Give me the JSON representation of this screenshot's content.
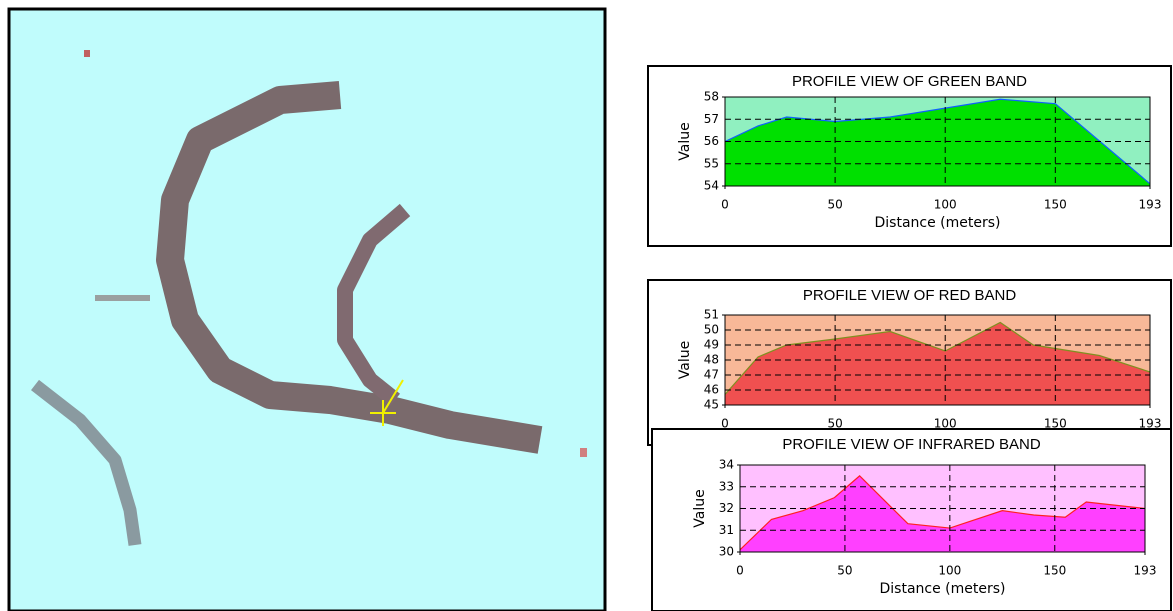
{
  "chart_data": [
    {
      "type": "area",
      "title": "PROFILE VIEW OF GREEN BAND",
      "xlabel": "Distance (meters)",
      "ylabel": "Value",
      "x": [
        0,
        15,
        28,
        50,
        75,
        100,
        125,
        150,
        193
      ],
      "values": [
        56,
        56.7,
        57.1,
        56.9,
        57.1,
        57.5,
        57.9,
        57.7,
        54.1
      ],
      "xlim": [
        0,
        193
      ],
      "xticks": [
        0,
        50,
        100,
        150,
        193
      ],
      "ylim": [
        54,
        58
      ],
      "yticks": [
        54,
        55,
        56,
        57,
        58
      ],
      "color": "#00e000",
      "line_color": "#1060ff",
      "background": "#90f0c0",
      "grid": true
    },
    {
      "type": "area",
      "title": "PROFILE VIEW OF RED BAND",
      "ylabel": "Value",
      "x": [
        0,
        15,
        28,
        50,
        75,
        100,
        125,
        140,
        170,
        193
      ],
      "values": [
        45.7,
        48.2,
        49,
        49.4,
        49.9,
        48.6,
        50.5,
        49,
        48.3,
        47.2
      ],
      "xlim": [
        0,
        193
      ],
      "xticks": [
        0,
        50,
        100,
        150,
        193
      ],
      "ylim": [
        45,
        51
      ],
      "yticks": [
        45,
        46,
        47,
        48,
        49,
        50,
        51
      ],
      "color": "#f05050",
      "line_color": "#809020",
      "background": "#f8b898",
      "grid": true
    },
    {
      "type": "area",
      "title": "PROFILE VIEW OF INFRARED BAND",
      "xlabel": "Distance (meters)",
      "ylabel": "Value",
      "x": [
        0,
        15,
        30,
        45,
        57,
        80,
        100,
        125,
        140,
        155,
        165,
        193
      ],
      "values": [
        30.1,
        31.5,
        31.9,
        32.5,
        33.5,
        31.3,
        31.1,
        31.9,
        31.7,
        31.6,
        32.3,
        32
      ],
      "xlim": [
        0,
        193
      ],
      "xticks": [
        0,
        50,
        100,
        150,
        193
      ],
      "ylim": [
        30,
        34
      ],
      "yticks": [
        30,
        31,
        32,
        33,
        34
      ],
      "color": "#ff40ff",
      "line_color": "#ff2020",
      "background": "#ffc0ff",
      "grid": true
    }
  ]
}
